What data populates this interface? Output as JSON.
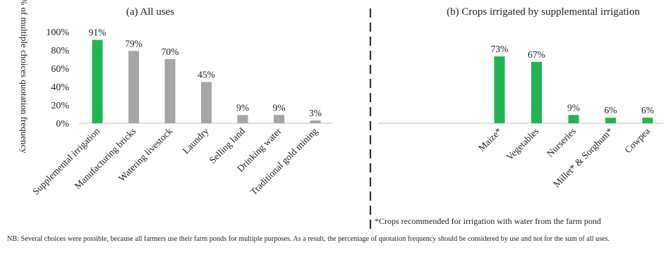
{
  "chart_data": [
    {
      "type": "bar",
      "title": "(a) All uses",
      "ylabel": "% of multiple choices quotation frequency",
      "yticks": [
        "0%",
        "20%",
        "40%",
        "60%",
        "80%",
        "100%"
      ],
      "ylim": [
        0,
        100
      ],
      "categories": [
        "Supplemental irrigation",
        "Manufacturing bricks",
        "Watering livestock",
        "Laundry",
        "Selling land",
        "Drinking water",
        "Traditional gold mining"
      ],
      "values": [
        91,
        79,
        70,
        45,
        9,
        9,
        3
      ],
      "data_labels": [
        "91%",
        "79%",
        "70%",
        "45%",
        "9%",
        "9%",
        "3%"
      ],
      "bar_colors": [
        "#1fb553",
        "#a6a6a6",
        "#a6a6a6",
        "#a6a6a6",
        "#a6a6a6",
        "#a6a6a6",
        "#a6a6a6"
      ],
      "grid": false
    },
    {
      "type": "bar",
      "title": "(b) Crops irrigated by supplemental irrigation",
      "ylim": [
        0,
        100
      ],
      "categories": [
        "Maize*",
        "Vegetables",
        "Nurseries",
        "Millet* & Sorghum*",
        "Cowpea"
      ],
      "values": [
        73,
        67,
        9,
        6,
        6
      ],
      "data_labels": [
        "73%",
        "67%",
        "9%",
        "6%",
        "6%"
      ],
      "bar_colors": [
        "#1fb553",
        "#1fb553",
        "#1fb553",
        "#1fb553",
        "#1fb553"
      ],
      "footnote": "*Crops recommended for irrigation with water from the farm pond",
      "grid": false
    }
  ],
  "note": "NB: Several choices were possible, because all farmers use their farm ponds for multiple purposes. As a result, the percentage of quotation frequency should be considered by use and not for the sum of all uses."
}
